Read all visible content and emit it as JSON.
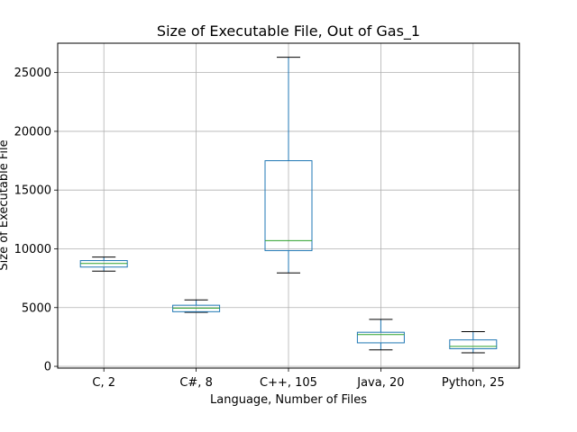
{
  "chart_data": {
    "type": "box",
    "title": "Size of Executable File, Out of Gas_1",
    "xlabel": "Language, Number of Files",
    "ylabel": "Size of Executable File",
    "categories": [
      "C, 2",
      "C#, 8",
      "C++, 105",
      "Java, 20",
      "Python, 25"
    ],
    "boxes": [
      {
        "whisker_low": 8100,
        "q1": 8450,
        "median": 8750,
        "q3": 9000,
        "whisker_high": 9300
      },
      {
        "whisker_low": 4600,
        "q1": 4650,
        "median": 4950,
        "q3": 5200,
        "whisker_high": 5650
      },
      {
        "whisker_low": 7950,
        "q1": 9850,
        "median": 10700,
        "q3": 17500,
        "whisker_high": 26300
      },
      {
        "whisker_low": 1400,
        "q1": 2000,
        "median": 2700,
        "q3": 2900,
        "whisker_high": 4000
      },
      {
        "whisker_low": 1150,
        "q1": 1500,
        "median": 1700,
        "q3": 2250,
        "whisker_high": 2950
      }
    ],
    "yticks": [
      0,
      5000,
      10000,
      15000,
      20000,
      25000
    ],
    "ylim": [
      -150,
      27500
    ],
    "grid": true,
    "colors": {
      "box": "#1f77b4",
      "median": "#2ca02c",
      "whisker_cap": "#000000",
      "grid": "#b0b0b0"
    }
  }
}
